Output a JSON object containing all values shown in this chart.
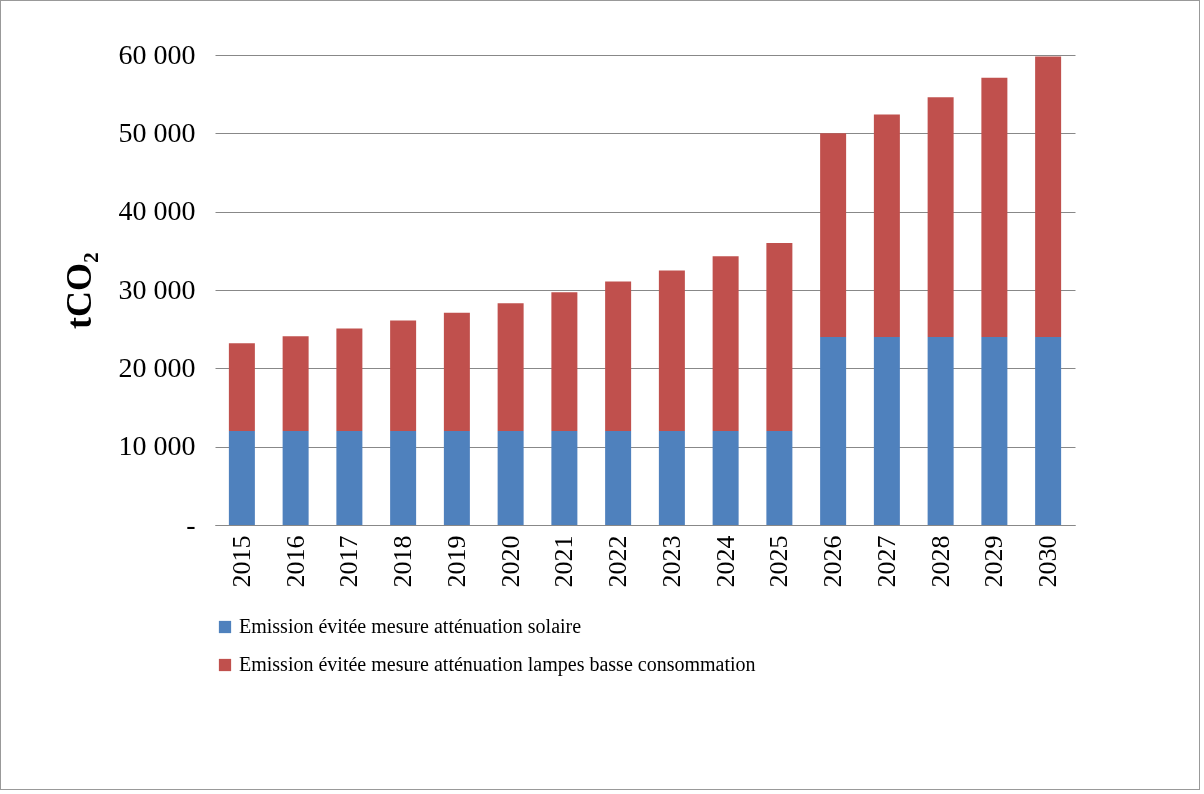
{
  "chart_data": {
    "type": "bar",
    "stacked": true,
    "ylabel": "tCO₂",
    "categories": [
      "2015",
      "2016",
      "2017",
      "2018",
      "2019",
      "2020",
      "2021",
      "2022",
      "2023",
      "2024",
      "2025",
      "2026",
      "2027",
      "2028",
      "2029",
      "2030"
    ],
    "series": [
      {
        "name": "Emission évitée mesure atténuation solaire",
        "color": "#4f81bd",
        "values": [
          12000,
          12000,
          12000,
          12000,
          12000,
          12000,
          12000,
          12000,
          12000,
          12000,
          12000,
          24000,
          24000,
          24000,
          24000,
          24000
        ]
      },
      {
        "name": "Emission évitée mesure atténuation lampes basse consommation",
        "color": "#c0504d",
        "values": [
          11200,
          12100,
          13100,
          14100,
          15100,
          16300,
          17700,
          19100,
          20500,
          22300,
          24000,
          26000,
          28400,
          30600,
          33100,
          35800
        ]
      }
    ],
    "ylim": [
      0,
      60000
    ],
    "yticks": [
      {
        "value": 0,
        "label": "-"
      },
      {
        "value": 10000,
        "label": "10 000"
      },
      {
        "value": 20000,
        "label": "20 000"
      },
      {
        "value": 30000,
        "label": "30 000"
      },
      {
        "value": 40000,
        "label": "40 000"
      },
      {
        "value": 50000,
        "label": "50 000"
      },
      {
        "value": 60000,
        "label": "60 000"
      }
    ],
    "grid": "y",
    "legend": "bottom"
  }
}
